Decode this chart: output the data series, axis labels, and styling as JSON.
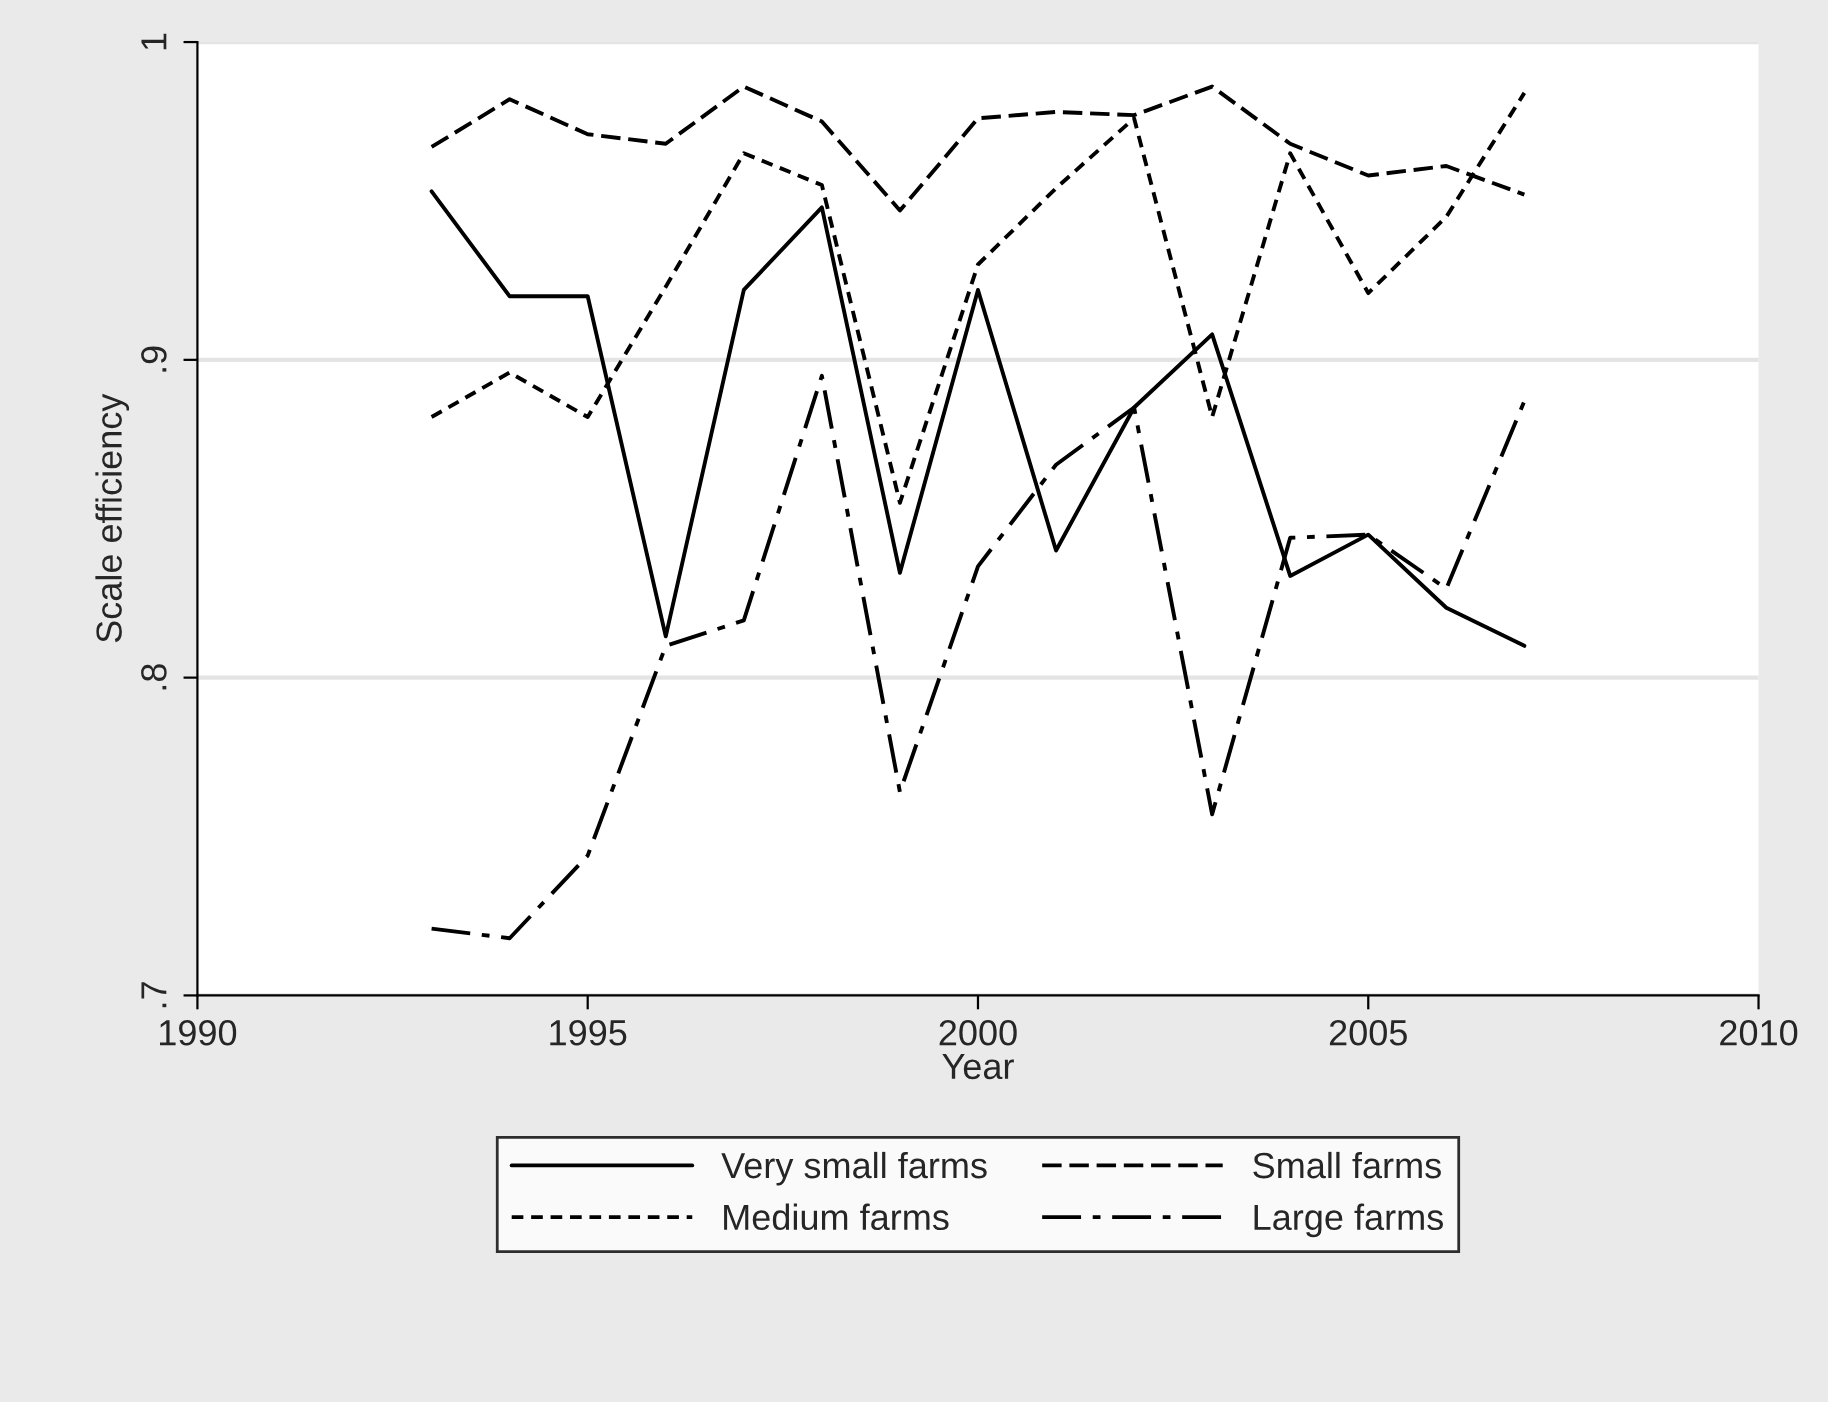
{
  "chart_data": {
    "type": "line",
    "xlabel": "Year",
    "ylabel": "Scale efficiency",
    "x": [
      1993,
      1994,
      1995,
      1996,
      1997,
      1998,
      1999,
      2000,
      2001,
      2002,
      2003,
      2004,
      2005,
      2006,
      2007
    ],
    "series": [
      {
        "name": "Very small farms",
        "color": "#000000",
        "line_style": "solid",
        "values": [
          0.953,
          0.92,
          0.92,
          0.813,
          0.922,
          0.948,
          0.833,
          0.922,
          0.84,
          0.885,
          0.908,
          0.832,
          0.845,
          0.822,
          0.81
        ]
      },
      {
        "name": "Small farms",
        "color": "#000000",
        "line_style": "dashed",
        "values": [
          0.967,
          0.982,
          0.971,
          0.968,
          0.986,
          0.975,
          0.947,
          0.976,
          0.978,
          0.977,
          0.986,
          0.968,
          0.958,
          0.961,
          0.952
        ]
      },
      {
        "name": "Medium farms",
        "color": "#000000",
        "line_style": "dotted",
        "values": [
          0.882,
          0.896,
          0.882,
          0.923,
          0.965,
          0.955,
          0.855,
          0.93,
          0.954,
          0.976,
          0.882,
          0.965,
          0.921,
          0.945,
          0.984
        ]
      },
      {
        "name": "Large farms",
        "color": "#000000",
        "line_style": "dashdot",
        "values": [
          0.721,
          0.718,
          0.744,
          0.81,
          0.818,
          0.895,
          0.764,
          0.835,
          0.867,
          0.885,
          0.757,
          0.844,
          0.845,
          0.828,
          0.887
        ]
      }
    ],
    "xlim": [
      1990,
      2010
    ],
    "xticks": [
      1990,
      1995,
      2000,
      2005,
      2010
    ],
    "ylim": [
      0.7,
      1
    ],
    "yticks": [
      {
        "value": 0.7,
        "label": ".7"
      },
      {
        "value": 0.8,
        "label": ".8"
      },
      {
        "value": 0.9,
        "label": ".9"
      },
      {
        "value": 1,
        "label": "1"
      }
    ],
    "grid": "y",
    "legend": "bottom",
    "marker": "none"
  }
}
